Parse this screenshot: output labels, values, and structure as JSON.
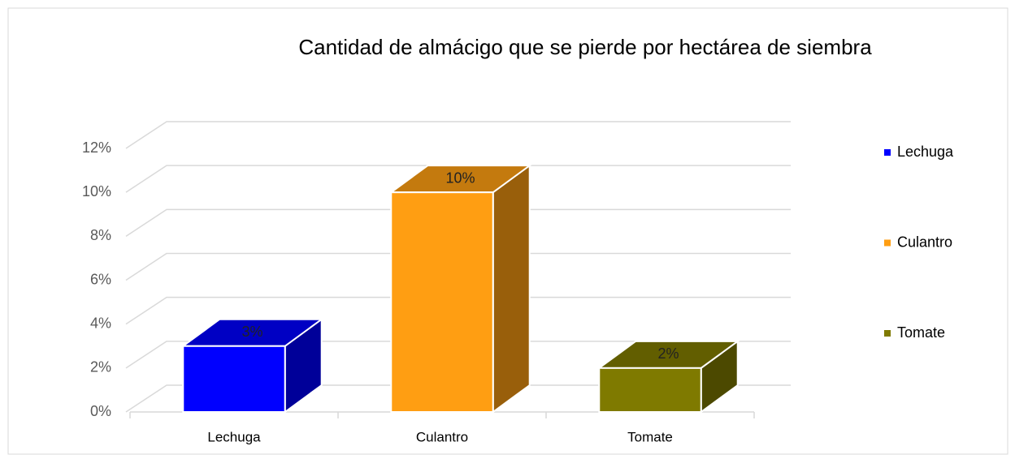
{
  "chart_data": {
    "type": "bar3d",
    "title": "Cantidad de almácigo que se pierde por hectárea de siembra",
    "categories": [
      "Lechuga",
      "Culantro",
      "Tomate"
    ],
    "values": [
      3,
      10,
      2
    ],
    "value_labels": [
      "3%",
      "10%",
      "2%"
    ],
    "colors": [
      "#0000ff",
      "#ff9e12",
      "#7f7a00"
    ],
    "ylim": [
      0,
      12
    ],
    "yticks": [
      {
        "value": 0,
        "label": "0%"
      },
      {
        "value": 2,
        "label": "2%"
      },
      {
        "value": 4,
        "label": "4%"
      },
      {
        "value": 6,
        "label": "6%"
      },
      {
        "value": 8,
        "label": "8%"
      },
      {
        "value": 10,
        "label": "10%"
      },
      {
        "value": 12,
        "label": "12%"
      }
    ],
    "grid": true,
    "legend": "right"
  }
}
